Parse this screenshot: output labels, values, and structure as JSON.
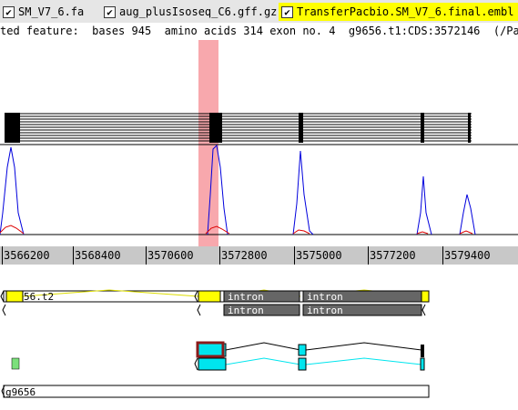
{
  "tabs": [
    {
      "label": "SM_V7_6.fa",
      "checked": true,
      "active": false
    },
    {
      "label": "aug_plusIsoseq_C6.gff.gz",
      "checked": true,
      "active": false
    },
    {
      "label": "TransferPacbio.SM_V7_6.final.embl",
      "checked": true,
      "active": true
    }
  ],
  "status": {
    "text": "ted feature:  bases 945  amino acids 314 exon no. 4  g9656.t1:CDS:3572146  (/Paren"
  },
  "ruler": {
    "labels": [
      "3566200",
      "3568400",
      "3570600",
      "3572800",
      "3575000",
      "3577200",
      "3579400"
    ]
  },
  "features": {
    "transcript_label": "56.t2",
    "intron_label": "intron",
    "gene_label": "g9656"
  },
  "colors": {
    "highlight": "#f8a8ad",
    "selected_cds": "#ffff00",
    "intron_fill": "#666666",
    "coverage_blue": "#0000dd",
    "coverage_red": "#dd0000",
    "cds_cyan": "#00e5ee",
    "selected_border": "#8b1a1a",
    "small_feature": "#7be07b"
  },
  "icons": {
    "checkbox": "checkbox-icon"
  }
}
